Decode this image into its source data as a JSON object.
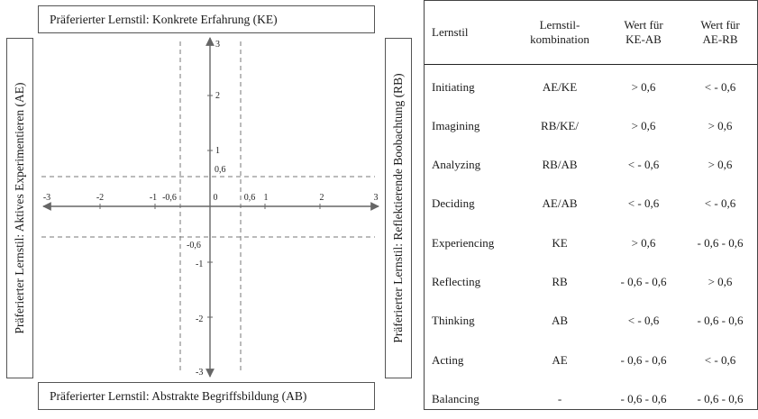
{
  "diagram": {
    "top_label": "Präferierter Lernstil: Konkrete Erfahrung (KE)",
    "bottom_label": "Präferierter Lernstil: Abstrakte Begriffsbildung (AB)",
    "left_label": "Präferierter Lernstil: Aktives Experimentieren (AE)",
    "right_label": "Präferierter Lernstil: Reflektierende Boobachtung (RB)",
    "x_ticks": [
      "-3",
      "-2",
      "-1",
      "-0,6",
      "0",
      "0,6",
      "1",
      "2",
      "3"
    ],
    "y_ticks_pos": [
      "3",
      "2",
      "1",
      "0,6"
    ],
    "y_ticks_neg": [
      "-0,6",
      "-1",
      "-2",
      "-3"
    ]
  },
  "table": {
    "headers": [
      "Lernstil",
      "Lernstil-\nkombination",
      "Wert für\nKE-AB",
      "Wert für\nAE-RB"
    ],
    "rows": [
      [
        "Initiating",
        "AE/KE",
        "> 0,6",
        "< - 0,6"
      ],
      [
        "Imagining",
        "RB/KE/",
        "> 0,6",
        "> 0,6"
      ],
      [
        "Analyzing",
        "RB/AB",
        "< - 0,6",
        "> 0,6"
      ],
      [
        "Deciding",
        "AE/AB",
        "< - 0,6",
        "< - 0,6"
      ],
      [
        "Experiencing",
        "KE",
        "> 0,6",
        "- 0,6 - 0,6"
      ],
      [
        "Reflecting",
        "RB",
        "- 0,6 - 0,6",
        "> 0,6"
      ],
      [
        "Thinking",
        "AB",
        "< - 0,6",
        "- 0,6 - 0,6"
      ],
      [
        "Acting",
        "AE",
        "- 0,6 - 0,6",
        "< - 0,6"
      ],
      [
        "Balancing",
        "-",
        "- 0,6 - 0,6",
        "- 0,6 - 0,6"
      ]
    ]
  }
}
